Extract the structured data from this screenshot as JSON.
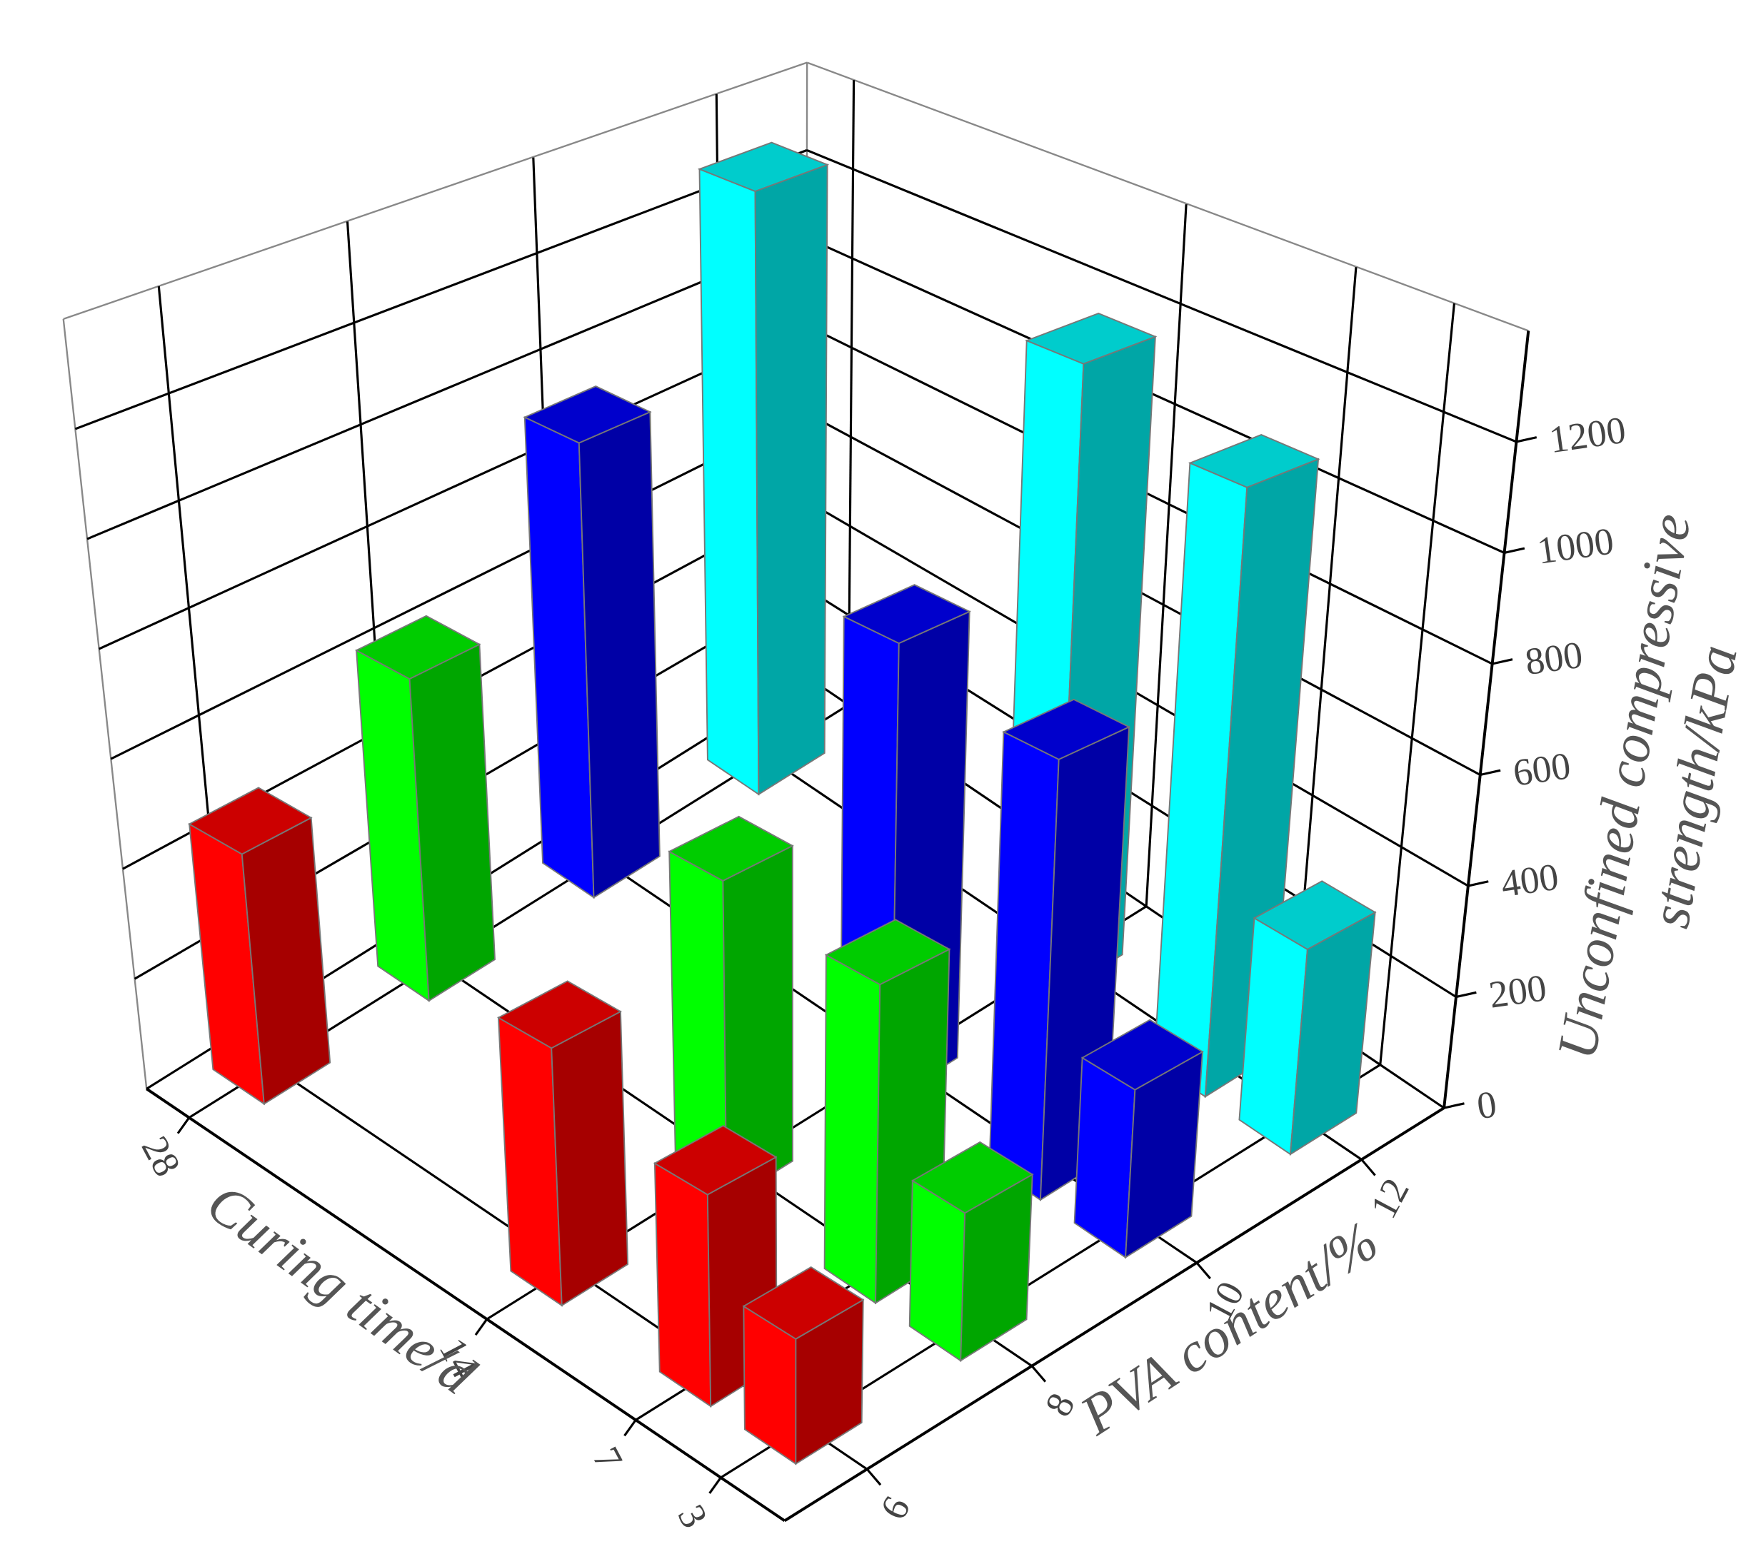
{
  "chart_data": {
    "type": "bar3d",
    "xlabel": "Curing time/d",
    "ylabel": "PVA content/%",
    "zlabel_lines": [
      "Unconfined compressive",
      "strength/kPa"
    ],
    "x": [
      3,
      7,
      14,
      28
    ],
    "xlim": [
      0,
      30
    ],
    "xticks": [
      3,
      7,
      14,
      28
    ],
    "ylim": [
      5,
      13
    ],
    "yticks": [
      6,
      8,
      10,
      12
    ],
    "zlim": [
      0,
      1400
    ],
    "zticks": [
      0,
      200,
      400,
      600,
      800,
      1000,
      1200
    ],
    "grid": true,
    "series": [
      {
        "y": 6,
        "color": "#ff0000",
        "values": [
          190,
          330,
          420,
          450
        ]
      },
      {
        "y": 8,
        "color": "#00ff00",
        "values": [
          235,
          520,
          550,
          610
        ]
      },
      {
        "y": 10,
        "color": "#0000ff",
        "values": [
          280,
          755,
          820,
          910
        ]
      },
      {
        "y": 12,
        "color": "#00ffff",
        "values": [
          360,
          1100,
          1200,
          1280
        ]
      }
    ]
  }
}
